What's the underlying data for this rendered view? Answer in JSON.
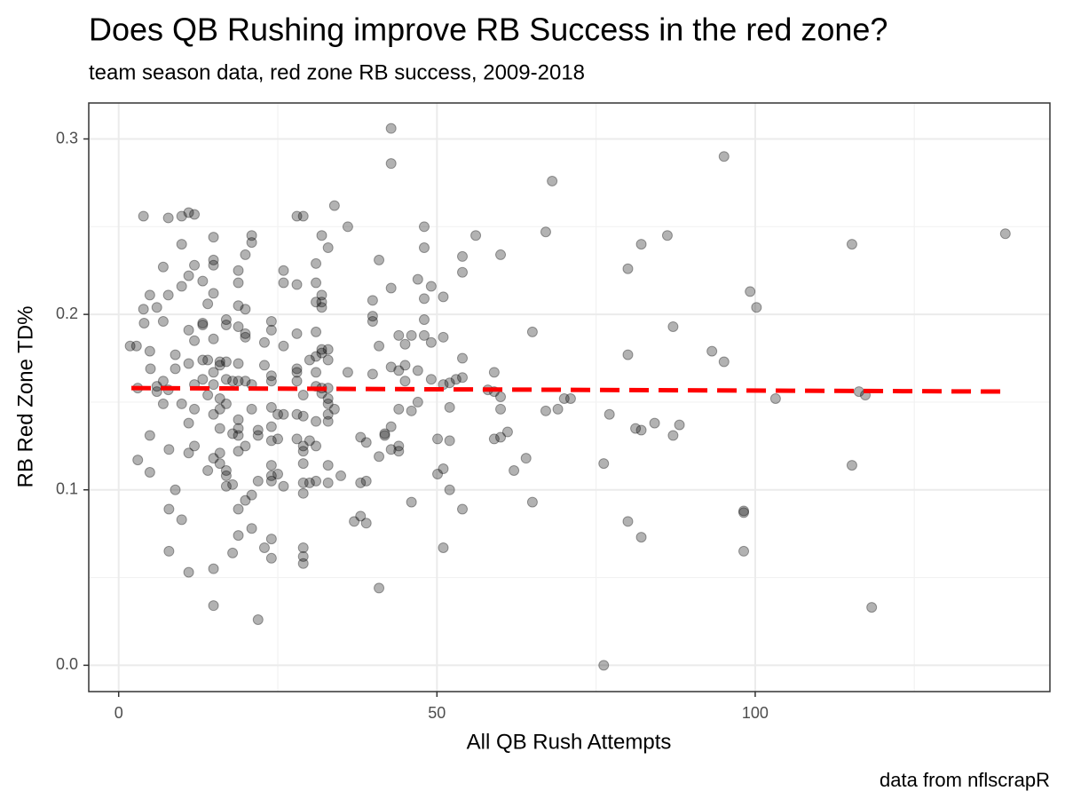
{
  "chart_data": {
    "type": "scatter",
    "title": "Does QB Rushing improve RB Success in the red zone?",
    "subtitle": "team season data, red zone RB success, 2009-2018",
    "x_label": "All QB Rush Attempts",
    "y_label": "RB Red Zone TD%",
    "caption": "data from nflscrapR",
    "xlim": [
      -4.7,
      146.3
    ],
    "ylim": [
      -0.015,
      0.3205
    ],
    "xticks": [
      0,
      50,
      100
    ],
    "yticks": [
      {
        "value": 0,
        "label": "0.0"
      },
      0.1,
      0.2,
      0.3
    ],
    "x_minor_grid": [
      25,
      75,
      125
    ],
    "y_minor_grid": [
      0.05,
      0.15,
      0.25
    ],
    "grid": true,
    "point_color": "#000000",
    "x": [
      1.8,
      2.8,
      3,
      3,
      3.9,
      3.9,
      4,
      4.9,
      4.9,
      5,
      4.9,
      4.9,
      6,
      6,
      6,
      7,
      7,
      7,
      7,
      7.8,
      7.8,
      7.8,
      7.9,
      7.9,
      7.9,
      8.9,
      8.9,
      8.9,
      9.9,
      9.9,
      9.9,
      9.9,
      9.9,
      11,
      11,
      11,
      11,
      11,
      11,
      11,
      11.9,
      11.9,
      11.9,
      11.9,
      11.9,
      11.9,
      13.2,
      13.2,
      13.2,
      13.2,
      13.2,
      14,
      14,
      14,
      14,
      14.9,
      14.9,
      14.9,
      14.9,
      14.9,
      14.9,
      14.9,
      14.9,
      14.9,
      14.9,
      14.9,
      15.9,
      15.9,
      15.9,
      15.9,
      15.9,
      15.9,
      15.9,
      16.9,
      16.9,
      16.9,
      16.9,
      16.9,
      16.9,
      16.9,
      16.9,
      17.9,
      17.9,
      17.9,
      17.9,
      18.8,
      18.8,
      18.8,
      18.8,
      18.8,
      18.8,
      18.8,
      18.8,
      18.8,
      18.8,
      18.8,
      18.8,
      19.9,
      19.9,
      19.9,
      19.9,
      19.9,
      19.9,
      19.9,
      20.9,
      20.9,
      20.9,
      20.9,
      20.9,
      20.9,
      21.9,
      21.9,
      21.9,
      21.9,
      22.9,
      22.9,
      22.9,
      24,
      24,
      24,
      24,
      24,
      24,
      24,
      24,
      24,
      24,
      24,
      24,
      25,
      25,
      25,
      25.9,
      25.9,
      25.9,
      25.9,
      25.9,
      28,
      28,
      28,
      28,
      28,
      28,
      28,
      28,
      29,
      29,
      29,
      29,
      29,
      29,
      29,
      29,
      29,
      29,
      29,
      30,
      30,
      30,
      31,
      31,
      31,
      31,
      31,
      31,
      31,
      31,
      31,
      31,
      31.9,
      31.9,
      31.9,
      31.9,
      31.9,
      31.9,
      31.9,
      31.9,
      32.9,
      32.9,
      32.9,
      32.9,
      32.9,
      32.9,
      32.9,
      32.9,
      32.9,
      32.9,
      33.9,
      33.9,
      34.9,
      36,
      36,
      37,
      38,
      38,
      38,
      38.9,
      38.9,
      38.9,
      39.9,
      39.9,
      39.9,
      39.9,
      40.9,
      40.9,
      40.9,
      40.9,
      41.8,
      41.8,
      42.8,
      42.8,
      42.8,
      42.8,
      42.8,
      42.8,
      44,
      44,
      44,
      44,
      44,
      45,
      45,
      45,
      46,
      46,
      46,
      47,
      47,
      47,
      48,
      48,
      48,
      48,
      48,
      49.1,
      49.1,
      49.1,
      50.1,
      50.1,
      51,
      51,
      51,
      51,
      51,
      52,
      52,
      52,
      52,
      53,
      54,
      54,
      54,
      54,
      54,
      56.1,
      58,
      59,
      59,
      59,
      60,
      60,
      60,
      60,
      61.1,
      62.1,
      64,
      65,
      65,
      67.1,
      67.1,
      68.1,
      69,
      70,
      71,
      76.2,
      76.2,
      77.1,
      80,
      80,
      80,
      81.2,
      82.1,
      82.1,
      82.1,
      84.2,
      86.2,
      87.1,
      87.1,
      88.1,
      93.2,
      95.1,
      95.1,
      98.2,
      98.2,
      98.2,
      99.2,
      100.2,
      103.2,
      115.2,
      115.2,
      116.3,
      117.3,
      118.3,
      139.3
    ],
    "values": [
      0.182,
      0.182,
      0.158,
      0.117,
      0.256,
      0.203,
      0.195,
      0.211,
      0.179,
      0.169,
      0.131,
      0.11,
      0.204,
      0.159,
      0.156,
      0.227,
      0.196,
      0.162,
      0.149,
      0.255,
      0.211,
      0.157,
      0.123,
      0.089,
      0.065,
      0.177,
      0.169,
      0.1,
      0.256,
      0.24,
      0.216,
      0.149,
      0.083,
      0.258,
      0.222,
      0.191,
      0.172,
      0.138,
      0.121,
      0.053,
      0.257,
      0.228,
      0.185,
      0.16,
      0.146,
      0.125,
      0.219,
      0.195,
      0.194,
      0.174,
      0.163,
      0.206,
      0.174,
      0.154,
      0.111,
      0.244,
      0.231,
      0.228,
      0.212,
      0.186,
      0.167,
      0.16,
      0.143,
      0.118,
      0.055,
      0.034,
      0.173,
      0.171,
      0.152,
      0.146,
      0.135,
      0.121,
      0.115,
      0.197,
      0.194,
      0.173,
      0.163,
      0.149,
      0.111,
      0.108,
      0.102,
      0.162,
      0.132,
      0.103,
      0.064,
      0.225,
      0.218,
      0.205,
      0.193,
      0.172,
      0.162,
      0.14,
      0.135,
      0.131,
      0.122,
      0.089,
      0.074,
      0.234,
      0.203,
      0.189,
      0.187,
      0.162,
      0.125,
      0.094,
      0.245,
      0.241,
      0.16,
      0.146,
      0.097,
      0.078,
      0.134,
      0.131,
      0.105,
      0.026,
      0.184,
      0.171,
      0.067,
      0.191,
      0.196,
      0.165,
      0.162,
      0.147,
      0.136,
      0.128,
      0.114,
      0.108,
      0.105,
      0.072,
      0.061,
      0.143,
      0.129,
      0.109,
      0.225,
      0.218,
      0.182,
      0.143,
      0.102,
      0.256,
      0.217,
      0.189,
      0.169,
      0.167,
      0.162,
      0.143,
      0.129,
      0.256,
      0.154,
      0.142,
      0.125,
      0.122,
      0.115,
      0.104,
      0.098,
      0.067,
      0.062,
      0.058,
      0.174,
      0.128,
      0.104,
      0.229,
      0.218,
      0.207,
      0.19,
      0.176,
      0.167,
      0.159,
      0.139,
      0.125,
      0.105,
      0.245,
      0.211,
      0.207,
      0.204,
      0.18,
      0.178,
      0.158,
      0.155,
      0.238,
      0.18,
      0.174,
      0.158,
      0.152,
      0.149,
      0.143,
      0.139,
      0.114,
      0.104,
      0.262,
      0.146,
      0.108,
      0.25,
      0.167,
      0.082,
      0.13,
      0.104,
      0.085,
      0.127,
      0.105,
      0.081,
      0.208,
      0.199,
      0.196,
      0.166,
      0.231,
      0.182,
      0.119,
      0.044,
      0.132,
      0.131,
      0.306,
      0.286,
      0.215,
      0.17,
      0.136,
      0.123,
      0.188,
      0.168,
      0.146,
      0.125,
      0.122,
      0.183,
      0.171,
      0.162,
      0.188,
      0.145,
      0.093,
      0.22,
      0.168,
      0.15,
      0.25,
      0.238,
      0.209,
      0.197,
      0.188,
      0.216,
      0.184,
      0.163,
      0.129,
      0.109,
      0.21,
      0.187,
      0.16,
      0.112,
      0.067,
      0.161,
      0.147,
      0.128,
      0.1,
      0.163,
      0.233,
      0.224,
      0.175,
      0.164,
      0.089,
      0.245,
      0.157,
      0.167,
      0.156,
      0.129,
      0.234,
      0.153,
      0.146,
      0.13,
      0.133,
      0.111,
      0.118,
      0.19,
      0.093,
      0.247,
      0.145,
      0.276,
      0.146,
      0.152,
      0.152,
      0.115,
      0.0,
      0.143,
      0.177,
      0.082,
      0.226,
      0.135,
      0.134,
      0.073,
      0.24,
      0.138,
      0.245,
      0.193,
      0.131,
      0.137,
      0.179,
      0.29,
      0.173,
      0.088,
      0.087,
      0.065,
      0.213,
      0.204,
      0.152,
      0.114,
      0.24,
      0.156,
      0.154,
      0.033,
      0.246
    ],
    "trend": {
      "x": [
        2,
        140
      ],
      "values": [
        0.158,
        0.156
      ],
      "color": "#ff0000"
    }
  }
}
